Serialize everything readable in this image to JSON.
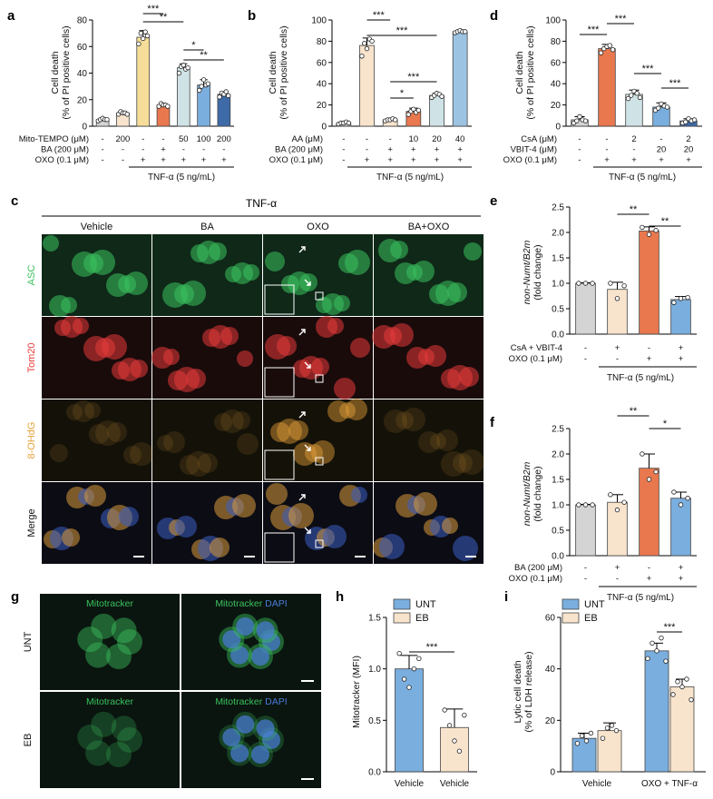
{
  "panel_letters": {
    "a": "a",
    "b": "b",
    "c": "c",
    "d": "d",
    "e": "e",
    "f": "f",
    "g": "g",
    "h": "h",
    "i": "i"
  },
  "common": {
    "tnf": "TNF-α (5 ng/mL)",
    "tnf_short": "TNF-α"
  },
  "colors": {
    "grey": "#d4d4d4",
    "peach": "#f8e3cc",
    "yellow": "#f6dd99",
    "orange": "#e9784f",
    "lightblue": "#cfe3e6",
    "midblue": "#9dc3e2",
    "blue": "#7aaede",
    "navy": "#3e6aa8",
    "beige": "#faf0e0",
    "lightorange": "#f3c9ad",
    "tan": "#f0d9c5",
    "asc": "#3bc25e",
    "tom20": "#e83a3a",
    "ohdg": "#e8a23a",
    "merge": "#c8c8c8",
    "mito": "#3bc25e",
    "dapi": "#4a7bd8"
  },
  "chart_data": [
    {
      "panel": "a",
      "type": "bar",
      "ylabel": "Cell death\n(% of PI positive cells)",
      "ylim": [
        0,
        80
      ],
      "yticks": [
        0,
        20,
        40,
        60,
        80
      ],
      "values": [
        5,
        10,
        67,
        16,
        44,
        31,
        24
      ],
      "errors": [
        1,
        1,
        5,
        1,
        3,
        4,
        2
      ],
      "dots": [
        [
          4,
          5,
          6,
          5,
          5
        ],
        [
          9,
          11,
          10,
          10,
          9
        ],
        [
          62,
          70,
          66,
          71,
          68
        ],
        [
          15,
          17,
          16,
          16,
          15
        ],
        [
          40,
          45,
          46,
          43,
          44
        ],
        [
          27,
          30,
          35,
          31,
          32
        ],
        [
          22,
          25,
          24,
          26,
          23
        ]
      ],
      "colors": [
        "#d4d4d4",
        "#f8e3cc",
        "#f6dd99",
        "#e9784f",
        "#cfe3e6",
        "#7aaede",
        "#3e6aa8"
      ],
      "row_labels": [
        "Mito-TEMPO (μM)",
        "BA (200 μM)",
        "OXO (0.1 μM)"
      ],
      "rows": [
        [
          "-",
          "200",
          "-",
          "-",
          "50",
          "100",
          "200"
        ],
        [
          "-",
          "-",
          "-",
          "+",
          "-",
          "-",
          "-"
        ],
        [
          "-",
          "-",
          "+",
          "+",
          "+",
          "+",
          "+"
        ]
      ],
      "sig": [
        {
          "from": 2,
          "to": 3,
          "label": "***"
        },
        {
          "from": 2,
          "to": 4,
          "label": "**"
        },
        {
          "from": 4,
          "to": 5,
          "label": "*"
        },
        {
          "from": 4,
          "to": 6,
          "label": "**"
        }
      ]
    },
    {
      "panel": "b",
      "type": "bar",
      "ylabel": "Cell death\n(% of PI positive cells)",
      "ylim": [
        0,
        100
      ],
      "yticks": [
        0,
        20,
        40,
        60,
        80,
        100
      ],
      "values": [
        3,
        76,
        6,
        14,
        29,
        89
      ],
      "errors": [
        1,
        7,
        1,
        3,
        2,
        1
      ],
      "dots": [
        [
          2,
          3,
          3,
          4,
          3
        ],
        [
          66,
          78,
          73,
          82,
          80
        ],
        [
          5,
          6,
          6,
          7,
          6
        ],
        [
          11,
          14,
          16,
          13,
          15
        ],
        [
          27,
          29,
          31,
          30,
          28
        ],
        [
          88,
          89,
          90,
          89,
          89
        ]
      ],
      "colors": [
        "#d4d4d4",
        "#f8e3cc",
        "#f8e3cc",
        "#e9784f",
        "#cfe3e6",
        "#9dc3e2"
      ],
      "row_labels": [
        "AA (μM)",
        "BA (200 μM)",
        "OXO (0.1 μM)"
      ],
      "rows": [
        [
          "-",
          "-",
          "-",
          "10",
          "20",
          "40"
        ],
        [
          "-",
          "-",
          "+",
          "+",
          "+",
          "+"
        ],
        [
          "-",
          "+",
          "+",
          "+",
          "+",
          "+"
        ]
      ],
      "sig": [
        {
          "from": 1,
          "to": 2,
          "label": "***"
        },
        {
          "from": 1,
          "to": 4,
          "label": "***"
        },
        {
          "from": 2,
          "to": 3,
          "label": "*"
        },
        {
          "from": 2,
          "to": 4,
          "label": "***"
        }
      ]
    },
    {
      "panel": "d",
      "type": "bar",
      "ylabel": "Cell death\n(% of PI positive cells)",
      "ylim": [
        0,
        100
      ],
      "yticks": [
        0,
        20,
        40,
        60,
        80,
        100
      ],
      "values": [
        6,
        73,
        30,
        18,
        5
      ],
      "errors": [
        3,
        4,
        4,
        4,
        2
      ],
      "dots": [
        [
          3,
          5,
          9,
          6,
          5
        ],
        [
          69,
          73,
          75,
          76,
          72
        ],
        [
          26,
          29,
          33,
          31,
          27
        ],
        [
          15,
          17,
          21,
          19,
          18
        ],
        [
          3,
          4,
          7,
          5,
          6
        ]
      ],
      "colors": [
        "#d4d4d4",
        "#e9784f",
        "#cfe3e6",
        "#7aaede",
        "#3e6aa8"
      ],
      "row_labels": [
        "CsA (μM)",
        "VBIT-4 (μM)",
        "OXO (0.1 μM)"
      ],
      "rows": [
        [
          "-",
          "-",
          "2",
          "-",
          "2"
        ],
        [
          "-",
          "-",
          "-",
          "20",
          "20"
        ],
        [
          "-",
          "+",
          "+",
          "+",
          "+"
        ]
      ],
      "sig": [
        {
          "from": 0,
          "to": 1,
          "label": "***"
        },
        {
          "from": 1,
          "to": 2,
          "label": "***"
        },
        {
          "from": 2,
          "to": 3,
          "label": "***"
        },
        {
          "from": 3,
          "to": 4,
          "label": "***"
        }
      ]
    },
    {
      "panel": "e",
      "type": "bar",
      "ylabel": "non-Numt/B2m\n(fold change)",
      "ylim": [
        0,
        2.5
      ],
      "yticks": [
        "0.0",
        "0.5",
        "1.0",
        "1.5",
        "2.0",
        "2.5"
      ],
      "values": [
        1.0,
        0.88,
        2.03,
        0.68
      ],
      "errors": [
        0.01,
        0.14,
        0.08,
        0.06
      ],
      "dots": [
        [
          1,
          1,
          1
        ],
        [
          1.0,
          0.7,
          0.95
        ],
        [
          2.1,
          1.96,
          2.04
        ],
        [
          0.62,
          0.7,
          0.72
        ]
      ],
      "colors": [
        "#d4d4d4",
        "#f8e3cc",
        "#e9784f",
        "#7aaede"
      ],
      "row_labels": [
        "CsA + VBIT-4",
        "OXO (0.1 μM)"
      ],
      "rows": [
        [
          "-",
          "+",
          "-",
          "+"
        ],
        [
          "-",
          "-",
          "+",
          "+"
        ]
      ],
      "sig": [
        {
          "from": 1,
          "to": 2,
          "label": "**"
        },
        {
          "from": 2,
          "to": 3,
          "label": "**"
        }
      ]
    },
    {
      "panel": "f",
      "type": "bar",
      "ylabel": "non-Numt/B2m\n(fold change)",
      "ylim": [
        0,
        2.5
      ],
      "yticks": [
        "0.0",
        "0.5",
        "1.0",
        "1.5",
        "2.0",
        "2.5"
      ],
      "values": [
        1.0,
        1.05,
        1.72,
        1.13
      ],
      "errors": [
        0.01,
        0.15,
        0.28,
        0.12
      ],
      "dots": [
        [
          1,
          1,
          1
        ],
        [
          1.2,
          0.9,
          1.05
        ],
        [
          2.0,
          1.5,
          1.65
        ],
        [
          1.25,
          1.0,
          1.13
        ]
      ],
      "colors": [
        "#d4d4d4",
        "#f8e3cc",
        "#e9784f",
        "#7aaede"
      ],
      "row_labels": [
        "BA (200 μM)",
        "OXO (0.1 μM)"
      ],
      "rows": [
        [
          "-",
          "+",
          "-",
          "+"
        ],
        [
          "-",
          "-",
          "+",
          "+"
        ]
      ],
      "sig": [
        {
          "from": 1,
          "to": 2,
          "label": "**"
        },
        {
          "from": 2,
          "to": 3,
          "label": "*"
        }
      ]
    },
    {
      "panel": "h",
      "type": "bar",
      "ylabel": "Mitotracker (MFI)",
      "ylim": [
        0,
        1.5
      ],
      "yticks": [
        "0.0",
        "0.5",
        "1.0",
        "1.5"
      ],
      "categories": [
        "Vehicle",
        "Vehicle"
      ],
      "legend": [
        "UNT",
        "EB"
      ],
      "values": [
        1.0,
        0.43
      ],
      "errors": [
        0.13,
        0.18
      ],
      "dots": [
        [
          1.15,
          0.9,
          0.82,
          1.0,
          1.1
        ],
        [
          0.6,
          0.45,
          0.3,
          0.2,
          0.55
        ]
      ],
      "colors": [
        "#7aaede",
        "#f8e3cc"
      ],
      "sig": [
        {
          "from": 0,
          "to": 1,
          "label": "***"
        }
      ]
    },
    {
      "panel": "i",
      "type": "bar",
      "ylabel": "Lytic cell death\n(% of LDH release)",
      "ylim": [
        0,
        60
      ],
      "yticks": [
        0,
        20,
        40,
        60
      ],
      "categories": [
        "Vehicle",
        "OXO + TNF-α"
      ],
      "legend": [
        "UNT",
        "EB"
      ],
      "groups": [
        {
          "values": [
            13,
            16
          ],
          "errors": [
            2,
            3
          ]
        },
        {
          "values": [
            47,
            33
          ],
          "errors": [
            3,
            3
          ]
        }
      ],
      "dots": [
        [
          [
            11,
            14,
            12,
            15
          ],
          [
            13,
            17,
            18,
            16
          ]
        ],
        [
          [
            44,
            50,
            47,
            52,
            43
          ],
          [
            30,
            35,
            33,
            36,
            28
          ]
        ]
      ],
      "colors": [
        "#7aaede",
        "#f8e3cc"
      ],
      "sig": [
        {
          "group": 1,
          "label": "***"
        }
      ]
    }
  ],
  "micrograph_c": {
    "columns": [
      "Vehicle",
      "BA",
      "OXO",
      "BA+OXO"
    ],
    "rows": [
      "ASC",
      "Tom20",
      "8-OHdG",
      "Merge"
    ]
  },
  "micrograph_g": {
    "rows": [
      "UNT",
      "EB"
    ],
    "left_label": "Mitotracker",
    "right_label_1": "Mitotracker",
    "right_label_2": "DAPI"
  }
}
